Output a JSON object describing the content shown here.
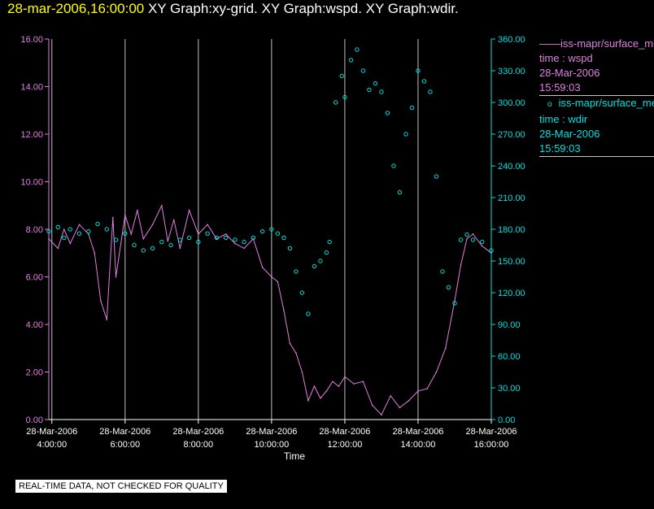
{
  "title": {
    "timestamp": "28-mar-2006,16:00:00",
    "graphs": " XY Graph:xy-grid.  XY Graph:wspd.  XY Graph:wdir."
  },
  "footer": "REAL-TIME DATA, NOT CHECKED FOR QUALITY",
  "legend": [
    {
      "marker": "——",
      "series": "iss-mapr/surface_met",
      "line1": "time : wspd",
      "line2": "28-Mar-2006",
      "line3": "15:59:03",
      "color": "#e080e0"
    },
    {
      "marker": "o",
      "series": "iss-mapr/surface_met",
      "line1": "time : wdir",
      "line2": "28-Mar-2006",
      "line3": "15:59:03",
      "color": "#00e0e0"
    }
  ],
  "chart_data": {
    "type": "line",
    "xlabel": "Time",
    "x_ticks": [
      {
        "date": "28-Mar-2006",
        "time": "4:00:00"
      },
      {
        "date": "28-Mar-2006",
        "time": "6:00:00"
      },
      {
        "date": "28-Mar-2006",
        "time": "8:00:00"
      },
      {
        "date": "28-Mar-2006",
        "time": "10:00:00"
      },
      {
        "date": "28-Mar-2006",
        "time": "12:00:00"
      },
      {
        "date": "28-Mar-2006",
        "time": "14:00:00"
      },
      {
        "date": "28-Mar-2006",
        "time": "16:00:00"
      }
    ],
    "xlim": [
      "03:55",
      "16:00"
    ],
    "y_left": {
      "ticks": [
        "0.00",
        "2.00",
        "4.00",
        "6.00",
        "8.00",
        "10.00",
        "12.00",
        "14.00",
        "16.00"
      ],
      "lim": [
        0,
        16
      ],
      "color": "#e080e0"
    },
    "y_right": {
      "ticks": [
        "0.00",
        "30.00",
        "60.00",
        "90.00",
        "120.00",
        "150.00",
        "180.00",
        "210.00",
        "240.00",
        "270.00",
        "300.00",
        "330.00",
        "360.00"
      ],
      "lim": [
        0,
        360
      ],
      "color": "#00e0e0"
    },
    "grid": "vertical lines at hourly ticks",
    "series": [
      {
        "name": "iss-mapr/surface_met time : wspd",
        "axis": "left",
        "style": "line",
        "color": "#e080e0",
        "x": [
          "03:55",
          "04:10",
          "04:20",
          "04:30",
          "04:45",
          "05:00",
          "05:10",
          "05:20",
          "05:30",
          "05:40",
          "05:45",
          "06:00",
          "06:10",
          "06:20",
          "06:30",
          "06:45",
          "07:00",
          "07:10",
          "07:20",
          "07:30",
          "07:45",
          "08:00",
          "08:15",
          "08:30",
          "08:45",
          "09:00",
          "09:15",
          "09:30",
          "09:45",
          "10:00",
          "10:10",
          "10:20",
          "10:30",
          "10:40",
          "10:50",
          "11:00",
          "11:10",
          "11:20",
          "11:30",
          "11:40",
          "11:50",
          "12:00",
          "12:15",
          "12:30",
          "12:45",
          "13:00",
          "13:15",
          "13:30",
          "13:45",
          "14:00",
          "14:15",
          "14:30",
          "14:45",
          "15:00",
          "15:10",
          "15:20",
          "15:30",
          "15:45",
          "16:00"
        ],
        "y": [
          7.6,
          7.2,
          8.0,
          7.4,
          8.2,
          7.8,
          7.0,
          5.0,
          4.2,
          8.5,
          6.0,
          8.6,
          7.8,
          8.8,
          7.6,
          8.2,
          9.0,
          7.5,
          8.4,
          7.2,
          8.8,
          7.8,
          8.2,
          7.6,
          7.8,
          7.4,
          7.2,
          7.6,
          6.4,
          6.0,
          5.8,
          4.6,
          3.2,
          2.8,
          2.0,
          0.8,
          1.4,
          0.9,
          1.2,
          1.6,
          1.4,
          1.8,
          1.5,
          1.6,
          0.6,
          0.2,
          1.0,
          0.5,
          0.8,
          1.2,
          1.3,
          2.0,
          3.0,
          5.0,
          6.5,
          7.6,
          7.8,
          7.3,
          7.0
        ]
      },
      {
        "name": "iss-mapr/surface_met time : wdir",
        "axis": "right",
        "style": "scatter",
        "color": "#00e0e0",
        "x": [
          "03:55",
          "04:10",
          "04:20",
          "04:30",
          "04:45",
          "05:00",
          "05:15",
          "05:30",
          "05:45",
          "06:00",
          "06:15",
          "06:30",
          "06:45",
          "07:00",
          "07:15",
          "07:30",
          "07:45",
          "08:00",
          "08:15",
          "08:30",
          "08:45",
          "09:00",
          "09:15",
          "09:30",
          "09:45",
          "10:00",
          "10:10",
          "10:20",
          "10:30",
          "10:40",
          "10:50",
          "11:00",
          "11:10",
          "11:20",
          "11:30",
          "11:35",
          "11:45",
          "11:55",
          "12:00",
          "12:10",
          "12:20",
          "12:30",
          "12:40",
          "12:50",
          "13:00",
          "13:10",
          "13:20",
          "13:30",
          "13:40",
          "13:50",
          "14:00",
          "14:10",
          "14:20",
          "14:30",
          "14:40",
          "14:50",
          "15:00",
          "15:10",
          "15:20",
          "15:30",
          "15:45",
          "16:00"
        ],
        "y": [
          178,
          182,
          172,
          180,
          176,
          178,
          185,
          180,
          170,
          176,
          165,
          160,
          162,
          168,
          165,
          170,
          172,
          168,
          176,
          172,
          172,
          170,
          168,
          172,
          178,
          180,
          176,
          172,
          162,
          140,
          120,
          100,
          145,
          150,
          158,
          168,
          300,
          325,
          305,
          340,
          350,
          330,
          312,
          318,
          310,
          290,
          240,
          215,
          270,
          295,
          330,
          320,
          310,
          230,
          140,
          125,
          110,
          170,
          175,
          170,
          168,
          160
        ]
      }
    ]
  }
}
